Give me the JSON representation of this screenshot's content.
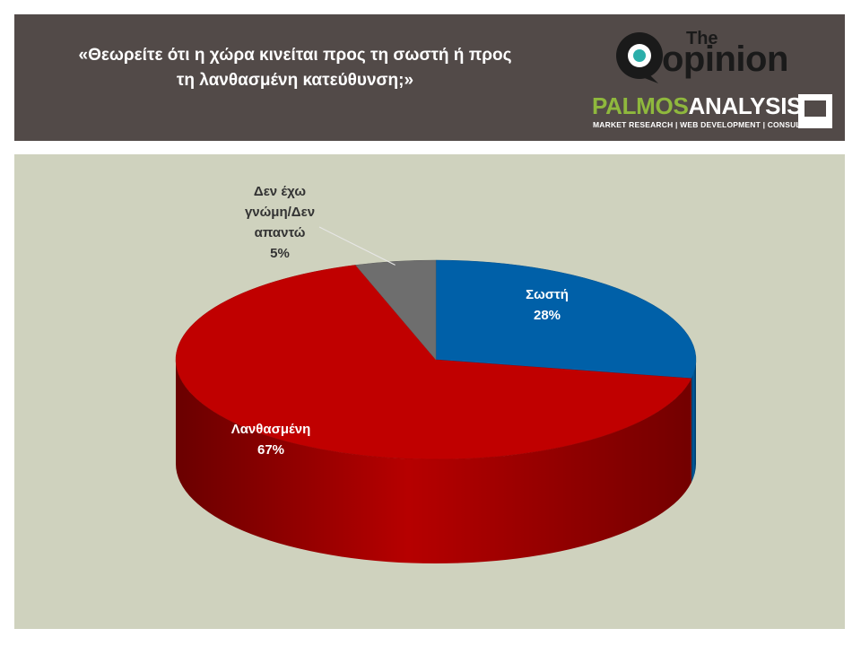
{
  "header": {
    "question_line1": "«Θεωρείτε ότι η χώρα κινείται προς τη σωστή ή προς",
    "question_line2": "τη λανθασμένη κατεύθυνση;»"
  },
  "logos": {
    "opinion_the": "The",
    "opinion_word": "opinion",
    "palmos_part1": "PALMOS",
    "palmos_part2": "ANALYSIS",
    "palmos_tagline": "MARKET RESEARCH | WEB DEVELOPMENT | CONSULTING"
  },
  "chart_data": {
    "type": "pie",
    "title": "",
    "slices": [
      {
        "label": "Σωστή",
        "value": 28,
        "value_text": "28%",
        "color": "#0060a8"
      },
      {
        "label": "Λανθασμένη",
        "value": 67,
        "value_text": "67%",
        "color": "#c00000"
      },
      {
        "label": "Δεν έχω γνώμη/Δεν απαντώ",
        "value": 5,
        "value_text": "5%",
        "color": "#6e6e6e"
      }
    ],
    "label_lines": {
      "Σωστή": [
        "Σωστή"
      ],
      "Λανθασμένη": [
        "Λανθασμένη"
      ],
      "Δεν έχω γνώμη/Δεν απαντώ": [
        "Δεν έχω",
        "γνώμη/Δεν",
        "απαντώ"
      ]
    },
    "label_color_inside": "#ffffff",
    "label_color_outside": "#333333",
    "legend": "none",
    "style": "3d-tilted"
  }
}
